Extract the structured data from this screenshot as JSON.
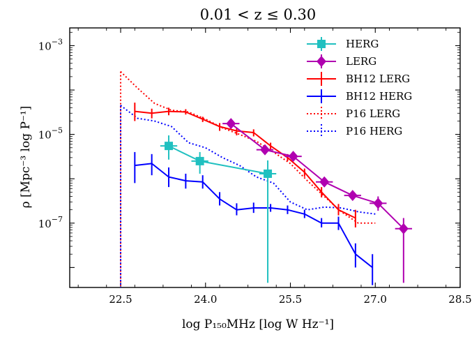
{
  "chart_data": {
    "type": "line",
    "title": "0.01 < z ≤ 0.30",
    "xlabel": "log P₁₅₀MHz [log W Hz⁻¹]",
    "ylabel": "ρ [Mpc⁻³ log P⁻¹]",
    "xlim": [
      21.6,
      28.5
    ],
    "ylim_log10": [
      -8.45,
      -2.6
    ],
    "y_scale": "log",
    "x_ticks": [
      22.5,
      24.0,
      25.5,
      27.0,
      28.5
    ],
    "x_tick_labels": [
      "22.5",
      "24.0",
      "25.5",
      "27.0",
      "28.5"
    ],
    "y_ticks_log10": [
      -3,
      -5,
      -7
    ],
    "y_tick_labels": [
      {
        "base": "10",
        "exp": "−3"
      },
      {
        "base": "10",
        "exp": "−5"
      },
      {
        "base": "10",
        "exp": "−7"
      }
    ],
    "legend_position": "top-right",
    "series": [
      {
        "name": "P16 LERG",
        "color": "#ff0000",
        "style": "dotted",
        "marker": "none",
        "points": [
          {
            "x": 22.5,
            "y": 0.00026
          },
          {
            "x": 22.8,
            "y": 0.00011
          },
          {
            "x": 23.1,
            "y": 5e-05
          },
          {
            "x": 23.4,
            "y": 3.5e-05
          },
          {
            "x": 23.7,
            "y": 3.2e-05
          },
          {
            "x": 24.0,
            "y": 2.2e-05
          },
          {
            "x": 24.3,
            "y": 1.4e-05
          },
          {
            "x": 24.6,
            "y": 1e-05
          },
          {
            "x": 24.9,
            "y": 7e-06
          },
          {
            "x": 25.2,
            "y": 4e-06
          },
          {
            "x": 25.5,
            "y": 2.2e-06
          },
          {
            "x": 25.8,
            "y": 9e-07
          },
          {
            "x": 26.1,
            "y": 4e-07
          },
          {
            "x": 26.4,
            "y": 1.8e-07
          },
          {
            "x": 26.7,
            "y": 1e-07
          },
          {
            "x": 27.0,
            "y": 1e-07
          }
        ]
      },
      {
        "name": "P16 HERG",
        "color": "#0000ff",
        "style": "dotted",
        "marker": "none",
        "points": [
          {
            "x": 22.5,
            "y": 4.5e-05
          },
          {
            "x": 22.8,
            "y": 2.3e-05
          },
          {
            "x": 23.1,
            "y": 2e-05
          },
          {
            "x": 23.4,
            "y": 1.5e-05
          },
          {
            "x": 23.7,
            "y": 6.5e-06
          },
          {
            "x": 24.0,
            "y": 5e-06
          },
          {
            "x": 24.3,
            "y": 3e-06
          },
          {
            "x": 24.6,
            "y": 2e-06
          },
          {
            "x": 24.9,
            "y": 1.1e-06
          },
          {
            "x": 25.2,
            "y": 8e-07
          },
          {
            "x": 25.5,
            "y": 3e-07
          },
          {
            "x": 25.8,
            "y": 2e-07
          },
          {
            "x": 26.1,
            "y": 2.3e-07
          },
          {
            "x": 26.4,
            "y": 2.2e-07
          },
          {
            "x": 26.7,
            "y": 1.8e-07
          },
          {
            "x": 27.0,
            "y": 1.6e-07
          }
        ]
      },
      {
        "name": "BH12 LERG",
        "color": "#ff0000",
        "style": "solid",
        "marker": "errorbar",
        "points": [
          {
            "x": 22.75,
            "y": 3.3e-05,
            "ylo": 2e-05,
            "yhi": 5.2e-05
          },
          {
            "x": 23.05,
            "y": 3e-05,
            "ylo": 2.3e-05,
            "yhi": 3.8e-05
          },
          {
            "x": 23.35,
            "y": 3.3e-05,
            "ylo": 2.7e-05,
            "yhi": 4e-05
          },
          {
            "x": 23.65,
            "y": 3.2e-05,
            "ylo": 2.8e-05,
            "yhi": 3.7e-05
          },
          {
            "x": 23.95,
            "y": 2.2e-05,
            "ylo": 1.9e-05,
            "yhi": 2.5e-05
          },
          {
            "x": 24.25,
            "y": 1.5e-05,
            "ylo": 1.2e-05,
            "yhi": 1.8e-05
          },
          {
            "x": 24.55,
            "y": 1.2e-05,
            "ylo": 9.5e-06,
            "yhi": 1.4e-05
          },
          {
            "x": 24.85,
            "y": 1.1e-05,
            "ylo": 9e-06,
            "yhi": 1.3e-05
          },
          {
            "x": 25.15,
            "y": 5.5e-06,
            "ylo": 4.5e-06,
            "yhi": 6.5e-06
          },
          {
            "x": 25.45,
            "y": 3e-06,
            "ylo": 2.5e-06,
            "yhi": 3.6e-06
          },
          {
            "x": 25.75,
            "y": 1.4e-06,
            "ylo": 1.1e-06,
            "yhi": 1.7e-06
          },
          {
            "x": 26.05,
            "y": 5e-07,
            "ylo": 3.8e-07,
            "yhi": 6.5e-07
          },
          {
            "x": 26.35,
            "y": 2e-07,
            "ylo": 1.5e-07,
            "yhi": 2.7e-07
          },
          {
            "x": 26.65,
            "y": 1.3e-07,
            "ylo": 8e-08,
            "yhi": 2e-07
          }
        ]
      },
      {
        "name": "BH12 HERG",
        "color": "#0000ff",
        "style": "solid",
        "marker": "errorbar",
        "points": [
          {
            "x": 22.75,
            "y": 2e-06,
            "ylo": 8e-07,
            "yhi": 4e-06
          },
          {
            "x": 23.05,
            "y": 2.2e-06,
            "ylo": 1.2e-06,
            "yhi": 3.6e-06
          },
          {
            "x": 23.35,
            "y": 1.1e-06,
            "ylo": 6.5e-07,
            "yhi": 1.8e-06
          },
          {
            "x": 23.65,
            "y": 9e-07,
            "ylo": 6e-07,
            "yhi": 1.3e-06
          },
          {
            "x": 23.95,
            "y": 8.5e-07,
            "ylo": 6e-07,
            "yhi": 1.2e-06
          },
          {
            "x": 24.25,
            "y": 3.5e-07,
            "ylo": 2.5e-07,
            "yhi": 5e-07
          },
          {
            "x": 24.55,
            "y": 2e-07,
            "ylo": 1.5e-07,
            "yhi": 2.8e-07
          },
          {
            "x": 24.85,
            "y": 2.2e-07,
            "ylo": 1.7e-07,
            "yhi": 2.9e-07
          },
          {
            "x": 25.15,
            "y": 2.2e-07,
            "ylo": 1.8e-07,
            "yhi": 2.7e-07
          },
          {
            "x": 25.45,
            "y": 2e-07,
            "ylo": 1.6e-07,
            "yhi": 2.5e-07
          },
          {
            "x": 25.75,
            "y": 1.6e-07,
            "ylo": 1.3e-07,
            "yhi": 2e-07
          },
          {
            "x": 26.05,
            "y": 1e-07,
            "ylo": 8e-08,
            "yhi": 1.3e-07
          },
          {
            "x": 26.35,
            "y": 1e-07,
            "ylo": 7e-08,
            "yhi": 1.4e-07
          },
          {
            "x": 26.65,
            "y": 2e-08,
            "ylo": 1e-08,
            "yhi": 3.5e-08
          },
          {
            "x": 26.95,
            "y": 1e-08,
            "ylo": 4e-09,
            "yhi": 2e-08
          }
        ]
      },
      {
        "name": "HERG",
        "color": "#20c0c0",
        "style": "solid",
        "marker": "square",
        "points": [
          {
            "x": 23.35,
            "y": 5.5e-06,
            "ylo": 2.7e-06,
            "yhi": 9.5e-06,
            "xerr": 0.3
          },
          {
            "x": 23.9,
            "y": 2.5e-06,
            "ylo": 1.3e-06,
            "yhi": 4e-06,
            "xerr": 0.3
          },
          {
            "x": 25.1,
            "y": 1.3e-06,
            "ylo": 4.5e-09,
            "yhi": 2.6e-06,
            "xerr": 0.3
          }
        ]
      },
      {
        "name": "LERG",
        "color": "#b000b0",
        "style": "solid",
        "marker": "diamond",
        "points": [
          {
            "x": 24.45,
            "y": 1.75e-05,
            "ylo": 1.5e-05,
            "yhi": 2.05e-05,
            "xerr": 0.3
          },
          {
            "x": 25.05,
            "y": 4.5e-06,
            "ylo": 3.8e-06,
            "yhi": 5.3e-06,
            "xerr": 0.3
          },
          {
            "x": 25.55,
            "y": 3.2e-06,
            "ylo": 2.7e-06,
            "yhi": 3.8e-06,
            "xerr": 0.3
          },
          {
            "x": 26.1,
            "y": 8.5e-07,
            "ylo": 6.8e-07,
            "yhi": 1.05e-06,
            "xerr": 0.3
          },
          {
            "x": 26.6,
            "y": 4.2e-07,
            "ylo": 3.3e-07,
            "yhi": 5.3e-07,
            "xerr": 0.3
          },
          {
            "x": 27.05,
            "y": 2.8e-07,
            "ylo": 1.9e-07,
            "yhi": 4e-07,
            "xerr": 0.3
          },
          {
            "x": 27.5,
            "y": 7.5e-08,
            "ylo": 4.5e-09,
            "yhi": 1.3e-07,
            "xerr": 0.3
          }
        ]
      }
    ],
    "legend": [
      {
        "name": "HERG",
        "color": "#20c0c0",
        "style": "solid",
        "marker": "square"
      },
      {
        "name": "LERG",
        "color": "#b000b0",
        "style": "solid",
        "marker": "diamond"
      },
      {
        "name": "BH12 LERG",
        "color": "#ff0000",
        "style": "solid",
        "marker": "errorbar"
      },
      {
        "name": "BH12 HERG",
        "color": "#0000ff",
        "style": "solid",
        "marker": "errorbar"
      },
      {
        "name": "P16 LERG",
        "color": "#ff0000",
        "style": "dotted",
        "marker": "errorbar"
      },
      {
        "name": "P16 HERG",
        "color": "#0000ff",
        "style": "dotted",
        "marker": "errorbar"
      }
    ]
  }
}
